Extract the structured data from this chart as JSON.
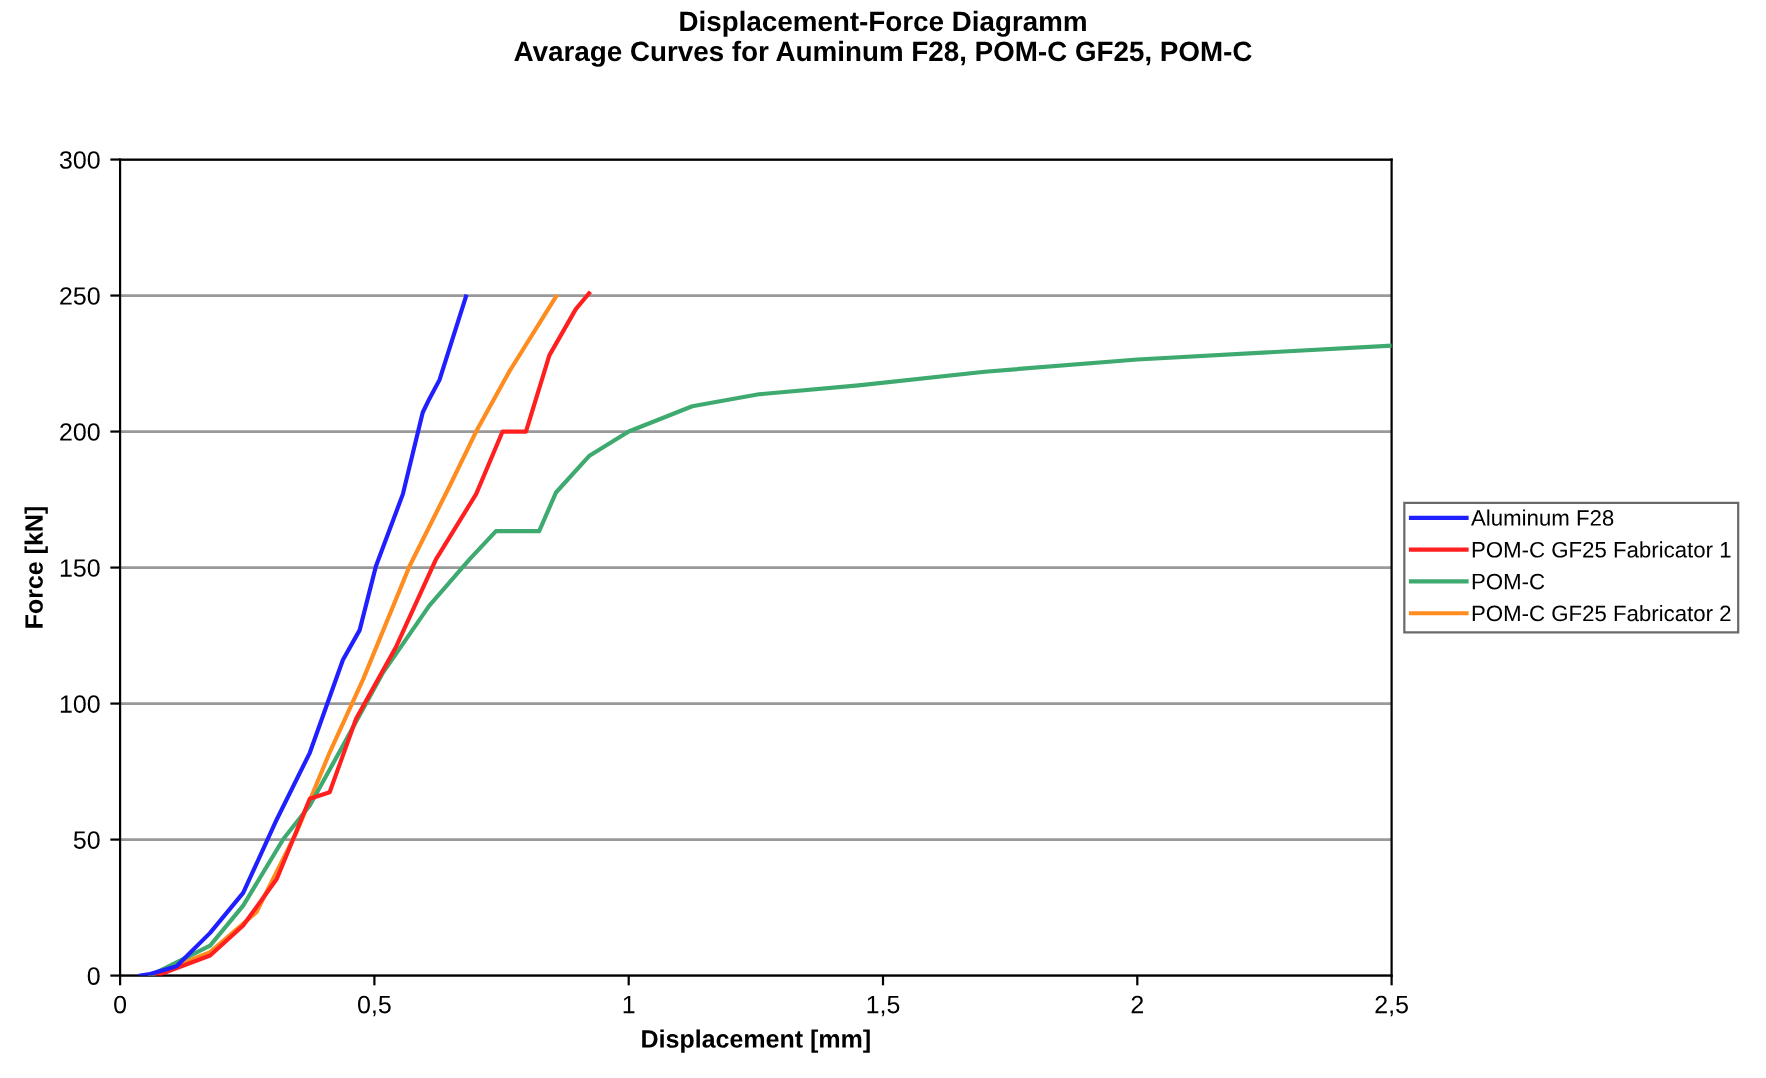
{
  "chart_data": {
    "type": "line",
    "title": "Displacement-Force Diagramm\nAvarage Curves for Auminum F28, POM-C GF25, POM-C",
    "xlabel": "Displacement [mm]",
    "ylabel": "Force [kN]",
    "xlim": [
      0,
      2.5
    ],
    "ylim": [
      0,
      300
    ],
    "xticks": [
      {
        "value": 0,
        "label": "0"
      },
      {
        "value": 0.5,
        "label": "0,5"
      },
      {
        "value": 1,
        "label": "1"
      },
      {
        "value": 1.5,
        "label": "1,5"
      },
      {
        "value": 2,
        "label": "2"
      },
      {
        "value": 2.5,
        "label": "2,5"
      }
    ],
    "yticks": [
      0,
      50,
      100,
      150,
      200,
      250,
      300
    ],
    "grid": "y",
    "legend": "right",
    "marker": "none",
    "line_style": "solid",
    "series": [
      {
        "name": "Aluminum F28",
        "color": "#1f1fff",
        "x": [
          0.04,
          0.059,
          0.111,
          0.177,
          0.242,
          0.308,
          0.373,
          0.438,
          0.471,
          0.503,
          0.556,
          0.595,
          0.608,
          0.628,
          0.68
        ],
        "values": [
          0,
          0.6,
          3.4,
          15.7,
          30.4,
          57.4,
          81.9,
          116,
          127,
          150.5,
          177,
          207,
          212,
          219,
          249.6
        ]
      },
      {
        "name": "POM-C GF25 Fabricator 1",
        "color": "#ff1f1f",
        "x": [
          0.072,
          0.177,
          0.242,
          0.308,
          0.373,
          0.412,
          0.464,
          0.543,
          0.621,
          0.7,
          0.752,
          0.798,
          0.844,
          0.896,
          0.922
        ],
        "values": [
          0,
          7.4,
          18.4,
          35.5,
          65,
          67.4,
          94.4,
          121,
          153,
          177,
          200,
          200,
          228,
          245,
          250.8
        ]
      },
      {
        "name": "POM-C",
        "color": "#3faa6f",
        "x": [
          0.059,
          0.177,
          0.242,
          0.321,
          0.373,
          0.438,
          0.517,
          0.608,
          0.687,
          0.739,
          0.824,
          0.857,
          0.922,
          1.0,
          1.125,
          1.256,
          1.452,
          1.7,
          2.0,
          2.5
        ],
        "values": [
          0,
          11,
          25.7,
          50.2,
          62.5,
          84.5,
          111.4,
          136,
          153,
          163.4,
          163.4,
          177.6,
          191,
          200,
          209.3,
          213.7,
          217,
          222,
          226.5,
          231.6
        ]
      },
      {
        "name": "POM-C GF25 Fabricator 2",
        "color": "#ff8c1f",
        "x": [
          0.059,
          0.177,
          0.268,
          0.347,
          0.412,
          0.478,
          0.569,
          0.648,
          0.7,
          0.765,
          0.857
        ],
        "values": [
          0,
          8.6,
          23.3,
          52.7,
          82,
          109,
          150.5,
          180,
          200,
          222,
          249.6
        ]
      }
    ]
  }
}
